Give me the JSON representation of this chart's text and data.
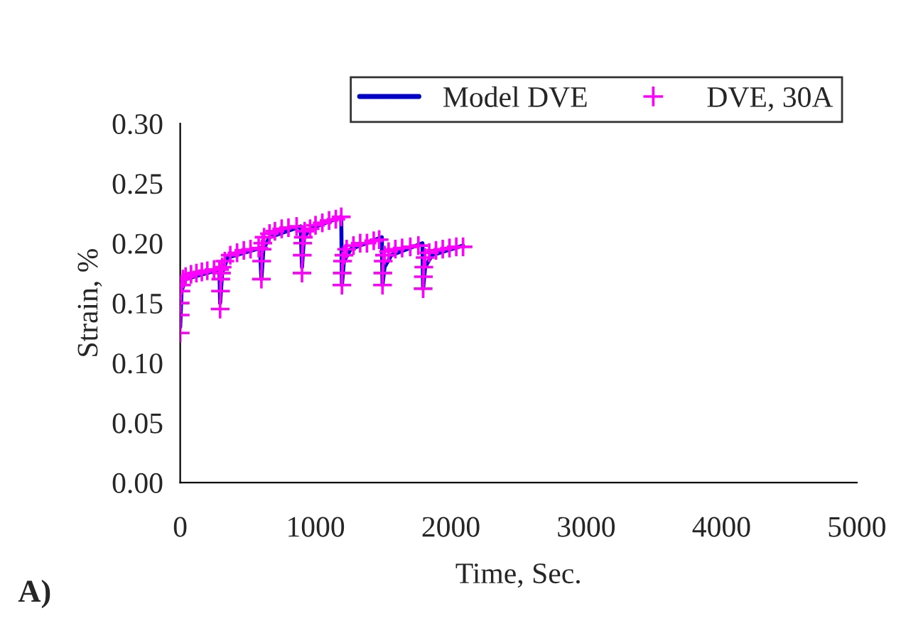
{
  "chart_data": {
    "type": "line",
    "xlabel": "Time, Sec.",
    "ylabel": "Strain, %",
    "annotations": [
      "A)"
    ],
    "xlim": [
      0,
      5000
    ],
    "xticks": [
      0,
      1000,
      2000,
      3000,
      4000,
      5000
    ],
    "ylim": [
      0,
      0.3
    ],
    "yticks": [
      {
        "value": 0,
        "label": "0.00"
      },
      {
        "value": 0.05,
        "label": "0.05"
      },
      {
        "value": 0.1,
        "label": "0.10"
      },
      {
        "value": 0.15,
        "label": "0.15"
      },
      {
        "value": 0.2,
        "label": "0.20"
      },
      {
        "value": 0.25,
        "label": "0.25"
      },
      {
        "value": 0.3,
        "label": "0.30"
      }
    ],
    "grid": false,
    "legend": "top right",
    "series": [
      {
        "name": "Model DVE",
        "color": "#0000cc",
        "marker": "none",
        "line_style": "solid",
        "x": [
          0,
          10,
          40,
          290,
          295,
          310,
          350,
          590,
          600,
          615,
          660,
          890,
          900,
          915,
          960,
          1190,
          1195,
          1210,
          1260,
          1490,
          1495,
          1510,
          1560,
          1790,
          1795,
          1810,
          1860,
          2090
        ],
        "values": [
          0.13,
          0.16,
          0.17,
          0.178,
          0.15,
          0.175,
          0.188,
          0.196,
          0.17,
          0.195,
          0.205,
          0.214,
          0.18,
          0.205,
          0.212,
          0.222,
          0.165,
          0.185,
          0.195,
          0.205,
          0.165,
          0.18,
          0.19,
          0.2,
          0.162,
          0.18,
          0.19,
          0.198
        ]
      },
      {
        "name": "DVE, 30A",
        "type": "scatter",
        "color": "#ff00ff",
        "marker": "cross",
        "x": [
          0,
          0,
          0,
          5,
          10,
          20,
          40,
          80,
          120,
          160,
          200,
          250,
          290,
          295,
          298,
          300,
          305,
          310,
          330,
          370,
          420,
          470,
          520,
          580,
          600,
          602,
          605,
          610,
          620,
          660,
          700,
          750,
          800,
          860,
          900,
          902,
          905,
          910,
          920,
          960,
          1000,
          1050,
          1100,
          1150,
          1190,
          1195,
          1197,
          1200,
          1210,
          1230,
          1280,
          1330,
          1380,
          1430,
          1470,
          1495,
          1497,
          1500,
          1510,
          1540,
          1590,
          1640,
          1700,
          1760,
          1795,
          1797,
          1800,
          1810,
          1840,
          1890,
          1940,
          1990,
          2040,
          2090
        ],
        "values": [
          0.125,
          0.14,
          0.15,
          0.16,
          0.165,
          0.17,
          0.172,
          0.174,
          0.175,
          0.176,
          0.177,
          0.178,
          0.178,
          0.145,
          0.16,
          0.17,
          0.175,
          0.18,
          0.185,
          0.19,
          0.192,
          0.194,
          0.195,
          0.196,
          0.17,
          0.185,
          0.195,
          0.2,
          0.205,
          0.208,
          0.21,
          0.212,
          0.213,
          0.214,
          0.175,
          0.19,
          0.2,
          0.205,
          0.21,
          0.212,
          0.215,
          0.217,
          0.219,
          0.22,
          0.222,
          0.165,
          0.175,
          0.185,
          0.19,
          0.195,
          0.198,
          0.2,
          0.2,
          0.202,
          0.203,
          0.165,
          0.175,
          0.185,
          0.19,
          0.193,
          0.195,
          0.196,
          0.197,
          0.198,
          0.162,
          0.172,
          0.18,
          0.188,
          0.192,
          0.194,
          0.195,
          0.196,
          0.197,
          0.197
        ]
      }
    ]
  }
}
